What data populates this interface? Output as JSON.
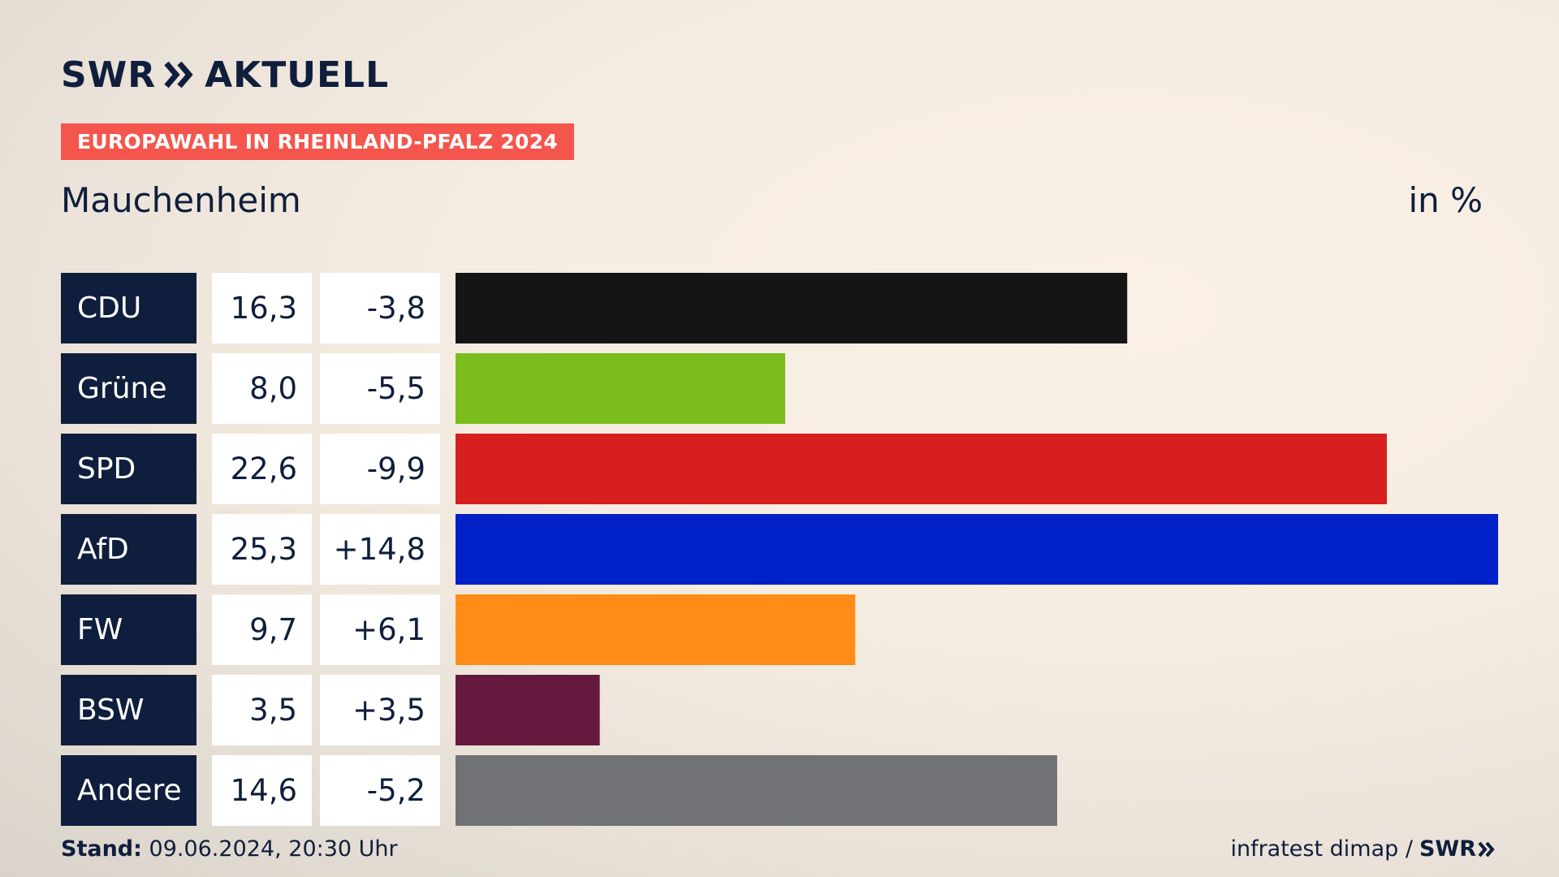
{
  "brand": {
    "name": "SWR",
    "product": "AKTUELL",
    "icon": "double-chevron-icon"
  },
  "event": "EUROPAWAHL IN RHEINLAND-PFALZ 2024",
  "place": "Mauchenheim",
  "unit": "in %",
  "colors": {
    "navy": "#0f1e3c",
    "badge": "#f4564d"
  },
  "chart_data": {
    "type": "bar",
    "orientation": "horizontal",
    "categories": [
      "CDU",
      "Grüne",
      "SPD",
      "AfD",
      "FW",
      "BSW",
      "Andere"
    ],
    "values": [
      16.3,
      8.0,
      22.6,
      25.3,
      9.7,
      3.5,
      14.6
    ],
    "value_labels": [
      "16,3",
      "8,0",
      "22,6",
      "25,3",
      "9,7",
      "3,5",
      "14,6"
    ],
    "change_labels": [
      "-3,8",
      "-5,5",
      "-9,9",
      "+14,8",
      "+6,1",
      "+3,5",
      "-5,2"
    ],
    "changes": [
      -3.8,
      -5.5,
      -9.9,
      14.8,
      6.1,
      3.5,
      -5.2
    ],
    "bar_colors": [
      "#151515",
      "#7bbd1d",
      "#d71f1f",
      "#0020c8",
      "#ff8c16",
      "#66193f",
      "#717275"
    ],
    "xlim": [
      0,
      25.3
    ],
    "grid": false
  },
  "footer": {
    "stand_label": "Stand:",
    "stand_value": "09.06.2024, 20:30 Uhr",
    "source": "infratest dimap /",
    "source_brand": "SWR"
  }
}
